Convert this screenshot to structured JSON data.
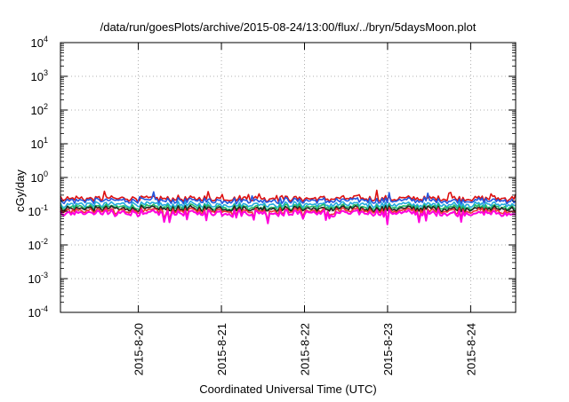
{
  "chart_data": {
    "type": "line",
    "title": "/data/run/goesPlots/archive/2015-08-24/13:00/flux/../bryn/5daysMoon.plot",
    "xlabel": "Coordinated Universal Time (UTC)",
    "ylabel": "cGy/day",
    "yscale": "log",
    "ylim": [
      0.0001,
      10000
    ],
    "xlim": [
      "2015-08-19T01:30",
      "2015-08-24T13:00"
    ],
    "grid": true,
    "x_ticks": [
      "2015-8-20",
      "2015-8-21",
      "2015-8-22",
      "2015-8-23",
      "2015-8-24"
    ],
    "x_tick_dates": [
      "2015-08-20T00:00",
      "2015-08-21T00:00",
      "2015-08-22T00:00",
      "2015-08-23T00:00",
      "2015-08-24T00:00"
    ],
    "y_ticks": [
      {
        "base": "10",
        "exp": "-4"
      },
      {
        "base": "10",
        "exp": "-3"
      },
      {
        "base": "10",
        "exp": "-2"
      },
      {
        "base": "10",
        "exp": "-1"
      },
      {
        "base": "10",
        "exp": "0"
      },
      {
        "base": "10",
        "exp": "1"
      },
      {
        "base": "10",
        "exp": "2"
      },
      {
        "base": "10",
        "exp": "3"
      },
      {
        "base": "10",
        "exp": "4"
      }
    ],
    "series": [
      {
        "color": "#dd1111",
        "approx_value": 0.24
      },
      {
        "color": "#2255dd",
        "approx_value": 0.21
      },
      {
        "color": "#22aadd",
        "approx_value": 0.16
      },
      {
        "color": "#22bb66",
        "approx_value": 0.135
      },
      {
        "color": "#222222",
        "approx_value": 0.12
      },
      {
        "color": "#ee3333",
        "approx_value": 0.105
      },
      {
        "color": "#ff00dd",
        "approx_value": 0.09
      }
    ]
  }
}
